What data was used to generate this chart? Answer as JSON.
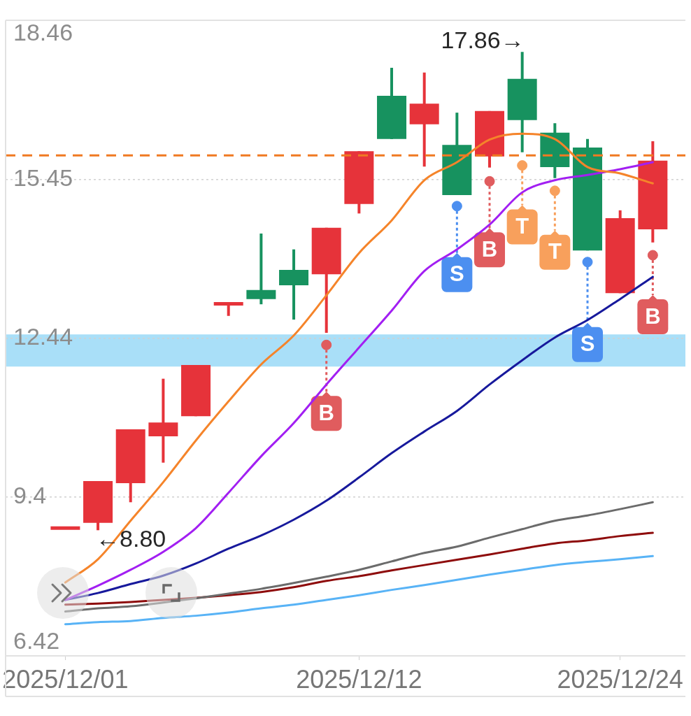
{
  "chart_data": {
    "type": "candlestick",
    "categories": [
      "2025/12/01",
      null,
      null,
      null,
      null,
      null,
      null,
      null,
      null,
      "2025/12/12",
      null,
      null,
      null,
      null,
      null,
      null,
      null,
      "2025/12/24",
      null
    ],
    "ohlc": [
      [
        8.84,
        8.84,
        8.84,
        8.84
      ],
      [
        8.94,
        9.73,
        8.8,
        9.73
      ],
      [
        9.69,
        10.71,
        9.33,
        10.71
      ],
      [
        10.58,
        11.67,
        10.08,
        10.84
      ],
      [
        10.96,
        11.93,
        10.96,
        11.93
      ],
      [
        13.06,
        13.12,
        12.86,
        13.12
      ],
      [
        13.35,
        14.42,
        13.08,
        13.18
      ],
      [
        13.73,
        14.12,
        12.79,
        13.44
      ],
      [
        13.65,
        14.53,
        12.54,
        14.53
      ],
      [
        14.98,
        15.98,
        14.8,
        15.98
      ],
      [
        17.03,
        17.56,
        16.21,
        16.21
      ],
      [
        16.49,
        17.47,
        15.69,
        16.88
      ],
      [
        16.1,
        16.71,
        15.15,
        15.15
      ],
      [
        15.88,
        16.74,
        15.67,
        16.74
      ],
      [
        17.35,
        17.86,
        15.96,
        16.57
      ],
      [
        16.33,
        16.51,
        15.47,
        15.68
      ],
      [
        16.05,
        16.21,
        14.1,
        14.1
      ],
      [
        13.29,
        14.86,
        13.29,
        14.71
      ],
      [
        14.5,
        16.17,
        14.25,
        15.8
      ]
    ],
    "colors": [
      "#e6333a",
      "#e6333a",
      "#e6333a",
      "#e6333a",
      "#e6333a",
      "#e6333a",
      "#17925f",
      "#17925f",
      "#e6333a",
      "#e6333a",
      "#17925f",
      "#e6333a",
      "#17925f",
      "#e6333a",
      "#17925f",
      "#17925f",
      "#17925f",
      "#e6333a",
      "#e6333a"
    ],
    "series": [
      {
        "type": "line",
        "color": "#f5842a",
        "values": [
          7.81,
          8.25,
          8.98,
          9.71,
          10.5,
          11.24,
          11.94,
          12.49,
          13.25,
          14.05,
          14.67,
          15.43,
          15.77,
          16.2,
          16.31,
          16.21,
          15.68,
          15.56,
          15.37
        ]
      },
      {
        "type": "line",
        "color": "#a21ff2",
        "values": [
          7.48,
          7.75,
          8.05,
          8.39,
          8.84,
          9.51,
          10.2,
          10.83,
          11.56,
          12.26,
          12.96,
          13.71,
          14.12,
          14.59,
          15.2,
          15.43,
          15.53,
          15.64,
          15.77
        ]
      },
      {
        "type": "line",
        "color": "#17199c",
        "values": [
          7.48,
          7.61,
          7.78,
          7.94,
          8.17,
          8.45,
          8.7,
          9.0,
          9.36,
          9.8,
          10.26,
          10.67,
          11.06,
          11.56,
          12.02,
          12.45,
          12.78,
          13.18,
          13.6
        ]
      },
      {
        "type": "line",
        "color": "#6b6b6b",
        "values": [
          7.26,
          7.32,
          7.36,
          7.43,
          7.51,
          7.6,
          7.69,
          7.8,
          7.92,
          8.05,
          8.21,
          8.37,
          8.49,
          8.66,
          8.82,
          8.98,
          9.08,
          9.2,
          9.33
        ]
      },
      {
        "type": "line",
        "color": "#8e0c0c",
        "values": [
          7.39,
          7.41,
          7.44,
          7.48,
          7.52,
          7.57,
          7.63,
          7.72,
          7.84,
          7.93,
          8.04,
          8.14,
          8.24,
          8.34,
          8.45,
          8.55,
          8.61,
          8.69,
          8.75
        ]
      },
      {
        "type": "line",
        "color": "#58b3f6",
        "values": [
          7.02,
          7.06,
          7.08,
          7.14,
          7.18,
          7.24,
          7.32,
          7.39,
          7.48,
          7.57,
          7.67,
          7.76,
          7.86,
          7.96,
          8.05,
          8.14,
          8.2,
          8.25,
          8.31
        ]
      },
      {
        "type": "scatter",
        "marker": "circle",
        "values": [
          null,
          null,
          null,
          null,
          null,
          null,
          null,
          null,
          12.31,
          null,
          null,
          null,
          14.94,
          15.41,
          15.71,
          15.23,
          13.88,
          null,
          14.01
        ],
        "colors": [
          null,
          null,
          null,
          null,
          null,
          null,
          null,
          null,
          "#e05c5e",
          null,
          null,
          null,
          "#4c8ff0",
          "#e05c5e",
          "#f8a05c",
          "#f8a05c",
          "#4c8ff0",
          null,
          "#e05c5e"
        ],
        "value_labels": [
          null,
          null,
          null,
          null,
          null,
          null,
          null,
          null,
          "B",
          null,
          null,
          null,
          "S",
          "B",
          "T",
          "T",
          "S",
          null,
          "B"
        ]
      }
    ],
    "ylim": [
      6.42,
      18.46
    ],
    "yticks": [
      6.42,
      {
        "value": 9.43,
        "label": "9.4"
      },
      12.44,
      15.45,
      18.46
    ],
    "ref_lines": [
      {
        "axis": "y",
        "value": 15.9,
        "color": "#f07a22",
        "line_style": "dashed"
      }
    ],
    "bands": [
      {
        "axis": "y",
        "from": 11.9,
        "to": 12.51,
        "color": "#a9dff8"
      }
    ],
    "annotations": [
      "17.86→",
      "←8.80"
    ],
    "grid": "y"
  }
}
